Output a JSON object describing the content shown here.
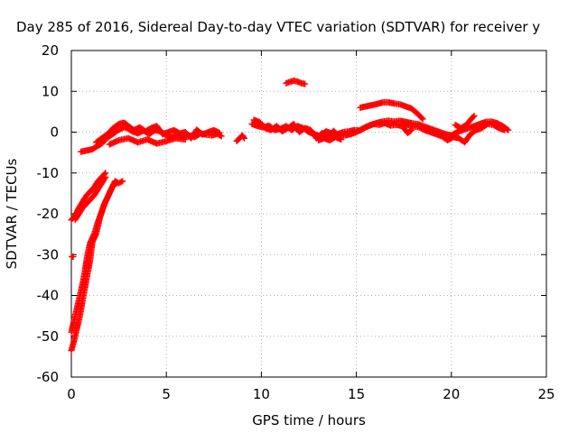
{
  "chart_data": {
    "type": "scatter",
    "title": "Day 285 of 2016, Sidereal Day-to-day VTEC variation (SDTVAR) for receiver y",
    "xlabel": "GPS time / hours",
    "ylabel": "SDTVAR / TECUs",
    "xlim": [
      0,
      25
    ],
    "ylim": [
      -60,
      20
    ],
    "x_ticks": [
      "0",
      "5",
      "10",
      "15",
      "20",
      "25"
    ],
    "y_ticks": [
      "-60",
      "-50",
      "-40",
      "-30",
      "-20",
      "-10",
      "0",
      "10",
      "20"
    ],
    "grid": true,
    "marker": "+",
    "color": "#ff0000",
    "segments": [
      {
        "points": [
          [
            0.02,
            -30.5
          ],
          [
            0.1,
            -30.5
          ]
        ]
      },
      {
        "points": [
          [
            0.0,
            -53.5
          ],
          [
            0.15,
            -51
          ],
          [
            0.3,
            -48
          ],
          [
            0.45,
            -45
          ],
          [
            0.6,
            -41
          ],
          [
            0.8,
            -36
          ],
          [
            1.0,
            -31
          ],
          [
            1.1,
            -27
          ],
          [
            1.3,
            -25
          ],
          [
            1.5,
            -21
          ],
          [
            1.7,
            -18
          ],
          [
            1.9,
            -16
          ],
          [
            2.1,
            -14
          ],
          [
            2.3,
            -12
          ],
          [
            2.5,
            -12.5
          ],
          [
            2.7,
            -12
          ]
        ]
      },
      {
        "points": [
          [
            0.0,
            -49
          ],
          [
            0.15,
            -46
          ],
          [
            0.3,
            -43
          ],
          [
            0.45,
            -40
          ],
          [
            0.6,
            -37
          ],
          [
            0.75,
            -33
          ],
          [
            0.85,
            -30
          ],
          [
            1.0,
            -27
          ],
          [
            1.2,
            -25
          ],
          [
            1.4,
            -22
          ],
          [
            1.6,
            -19.5
          ],
          [
            1.8,
            -17
          ],
          [
            2.0,
            -15
          ],
          [
            2.2,
            -13
          ],
          [
            2.4,
            -12.5
          ]
        ]
      },
      {
        "points": [
          [
            0.0,
            -21.5
          ],
          [
            0.2,
            -20.5
          ],
          [
            0.4,
            -18.5
          ],
          [
            0.6,
            -17
          ],
          [
            0.8,
            -15.5
          ],
          [
            1.0,
            -14.5
          ],
          [
            1.2,
            -13.5
          ],
          [
            1.4,
            -12
          ],
          [
            1.6,
            -11
          ],
          [
            1.8,
            -10
          ]
        ]
      },
      {
        "points": [
          [
            0.2,
            -21.5
          ],
          [
            0.4,
            -20
          ],
          [
            0.6,
            -18.5
          ],
          [
            0.8,
            -17.5
          ],
          [
            1.0,
            -16.5
          ],
          [
            1.2,
            -15.5
          ],
          [
            1.4,
            -14
          ],
          [
            1.6,
            -12.5
          ],
          [
            1.8,
            -11
          ]
        ]
      },
      {
        "points": [
          [
            0.5,
            -4.8
          ],
          [
            0.8,
            -4.5
          ],
          [
            1.1,
            -4.2
          ],
          [
            1.3,
            -3.6
          ],
          [
            1.6,
            -2.8
          ],
          [
            1.8,
            -1.8
          ],
          [
            2.0,
            -1
          ],
          [
            2.2,
            -0.4
          ],
          [
            2.4,
            0.3
          ],
          [
            2.6,
            0.8
          ],
          [
            2.8,
            1.2
          ],
          [
            3.0,
            0.8
          ],
          [
            3.2,
            0.2
          ],
          [
            3.5,
            -0.3
          ],
          [
            3.8,
            0.4
          ],
          [
            4.1,
            -0.5
          ],
          [
            4.4,
            0.5
          ],
          [
            4.7,
            0.2
          ],
          [
            5.0,
            -0.8
          ],
          [
            5.3,
            -1.3
          ],
          [
            5.6,
            -0.5
          ],
          [
            5.9,
            -1
          ],
          [
            6.2,
            -0.8
          ],
          [
            6.5,
            -1.2
          ],
          [
            6.8,
            -0.3
          ],
          [
            7.1,
            -0.6
          ],
          [
            7.4,
            -0.8
          ],
          [
            7.7,
            -0.4
          ],
          [
            7.9,
            -1
          ]
        ]
      },
      {
        "points": [
          [
            1.3,
            -2.5
          ],
          [
            1.6,
            -1.5
          ],
          [
            1.9,
            -0.5
          ],
          [
            2.2,
            1
          ],
          [
            2.5,
            2
          ],
          [
            2.8,
            2.3
          ],
          [
            3.0,
            1.5
          ],
          [
            3.3,
            0.5
          ],
          [
            3.6,
            1.2
          ],
          [
            3.9,
            0.2
          ],
          [
            4.2,
            1
          ],
          [
            4.5,
            1.5
          ],
          [
            4.8,
            -0.5
          ],
          [
            5.1,
            0
          ],
          [
            5.4,
            0.5
          ],
          [
            5.7,
            -0.3
          ],
          [
            6.0,
            0
          ],
          [
            6.3,
            -1.5
          ],
          [
            6.6,
            0.6
          ],
          [
            6.9,
            -0.6
          ],
          [
            7.2,
            0
          ],
          [
            7.5,
            0.5
          ],
          [
            7.8,
            -0.2
          ]
        ]
      },
      {
        "points": [
          [
            2.0,
            -3
          ],
          [
            2.5,
            -2
          ],
          [
            3.0,
            -1.5
          ],
          [
            3.5,
            -2.5
          ],
          [
            4.0,
            -1.8
          ],
          [
            4.5,
            -2.8
          ],
          [
            5.0,
            -2.2
          ],
          [
            5.5,
            -1.5
          ],
          [
            6.0,
            -1.8
          ]
        ]
      },
      {
        "points": [
          [
            8.7,
            -2.2
          ],
          [
            8.85,
            -1.5
          ],
          [
            9.0,
            -0.8
          ],
          [
            9.1,
            -1.5
          ]
        ]
      },
      {
        "points": [
          [
            9.5,
            2
          ],
          [
            9.8,
            1.5
          ],
          [
            10.1,
            1.2
          ],
          [
            10.4,
            1.6
          ],
          [
            10.7,
            0.5
          ],
          [
            11.0,
            0.8
          ],
          [
            11.3,
            1.5
          ],
          [
            11.6,
            0.5
          ],
          [
            11.9,
            1.5
          ],
          [
            12.2,
            1
          ],
          [
            12.5,
            0
          ],
          [
            12.8,
            -0.5
          ],
          [
            13.1,
            -1
          ],
          [
            13.4,
            0.2
          ],
          [
            13.7,
            -0.3
          ],
          [
            14.0,
            -0.5
          ],
          [
            14.3,
            0
          ],
          [
            14.6,
            0.2
          ],
          [
            14.9,
            0.5
          ],
          [
            15.2,
            0.4
          ],
          [
            15.5,
            1.2
          ],
          [
            15.8,
            1.8
          ],
          [
            16.1,
            2.3
          ],
          [
            16.4,
            2.6
          ],
          [
            16.7,
            2.8
          ],
          [
            17.0,
            2.6
          ],
          [
            17.3,
            2.8
          ],
          [
            17.6,
            2.5
          ],
          [
            17.9,
            2.2
          ],
          [
            18.2,
            2
          ],
          [
            18.5,
            1.5
          ],
          [
            18.8,
            1
          ],
          [
            19.1,
            0.5
          ],
          [
            19.4,
            0
          ],
          [
            19.7,
            -0.5
          ],
          [
            20.0,
            -0.8
          ],
          [
            20.3,
            0
          ],
          [
            20.6,
            0.5
          ],
          [
            20.9,
            1
          ],
          [
            21.2,
            1.5
          ],
          [
            21.5,
            2
          ],
          [
            21.8,
            2.5
          ],
          [
            22.1,
            2.6
          ],
          [
            22.4,
            2.2
          ],
          [
            22.7,
            1.5
          ],
          [
            23.0,
            0.5
          ]
        ]
      },
      {
        "points": [
          [
            9.6,
            3
          ],
          [
            9.9,
            2.5
          ],
          [
            10.2,
            1
          ],
          [
            10.5,
            0.5
          ],
          [
            10.8,
            1.5
          ],
          [
            11.1,
            0.2
          ],
          [
            11.4,
            1
          ],
          [
            11.7,
            2
          ],
          [
            12.0,
            0
          ],
          [
            12.3,
            1
          ],
          [
            12.6,
            0.5
          ],
          [
            12.9,
            -1.5
          ],
          [
            13.2,
            -0.2
          ],
          [
            13.5,
            -1.2
          ],
          [
            13.8,
            0.3
          ],
          [
            14.1,
            -1
          ],
          [
            14.4,
            -0.8
          ],
          [
            14.7,
            -0.5
          ],
          [
            15.0,
            0
          ],
          [
            15.3,
            0.8
          ],
          [
            15.6,
            1.5
          ],
          [
            15.9,
            2
          ],
          [
            16.2,
            1.8
          ],
          [
            16.5,
            2.2
          ],
          [
            16.8,
            1.6
          ],
          [
            17.1,
            1.8
          ],
          [
            17.4,
            1.5
          ],
          [
            17.7,
            1.8
          ],
          [
            18.0,
            1.4
          ],
          [
            18.3,
            1.2
          ],
          [
            18.6,
            0.5
          ],
          [
            18.9,
            0
          ],
          [
            19.2,
            -0.5
          ],
          [
            19.5,
            -1
          ],
          [
            19.8,
            -2
          ],
          [
            20.1,
            -1.2
          ],
          [
            20.4,
            -1.5
          ],
          [
            20.7,
            -2.5
          ],
          [
            21.0,
            -0.5
          ],
          [
            21.3,
            0.5
          ],
          [
            21.6,
            1
          ],
          [
            21.9,
            2
          ],
          [
            22.2,
            1.8
          ],
          [
            22.5,
            1
          ],
          [
            22.8,
            0.5
          ]
        ]
      },
      {
        "points": [
          [
            13.0,
            -2
          ],
          [
            13.3,
            -1.5
          ],
          [
            13.6,
            -2
          ],
          [
            13.9,
            -1.2
          ],
          [
            14.2,
            -1.8
          ]
        ]
      },
      {
        "points": [
          [
            11.3,
            12
          ],
          [
            11.5,
            12.3
          ],
          [
            11.7,
            12.6
          ],
          [
            11.9,
            12.4
          ],
          [
            12.1,
            12
          ],
          [
            12.3,
            11.8
          ]
        ]
      },
      {
        "points": [
          [
            15.2,
            6
          ],
          [
            15.5,
            6.3
          ],
          [
            15.8,
            6.6
          ],
          [
            16.1,
            6.9
          ],
          [
            16.4,
            7.3
          ],
          [
            16.7,
            7.3
          ],
          [
            17.0,
            7
          ],
          [
            17.3,
            6.8
          ],
          [
            17.6,
            6.3
          ],
          [
            17.9,
            5.8
          ],
          [
            18.2,
            4.6
          ],
          [
            18.5,
            3.2
          ]
        ]
      },
      {
        "points": [
          [
            20.2,
            1.8
          ],
          [
            20.5,
            1
          ],
          [
            20.8,
            1.8
          ],
          [
            21.0,
            3
          ],
          [
            21.2,
            4
          ]
        ]
      },
      {
        "points": [
          [
            17.5,
            1
          ],
          [
            17.7,
            -0.2
          ],
          [
            17.9,
            0.5
          ]
        ]
      }
    ]
  }
}
